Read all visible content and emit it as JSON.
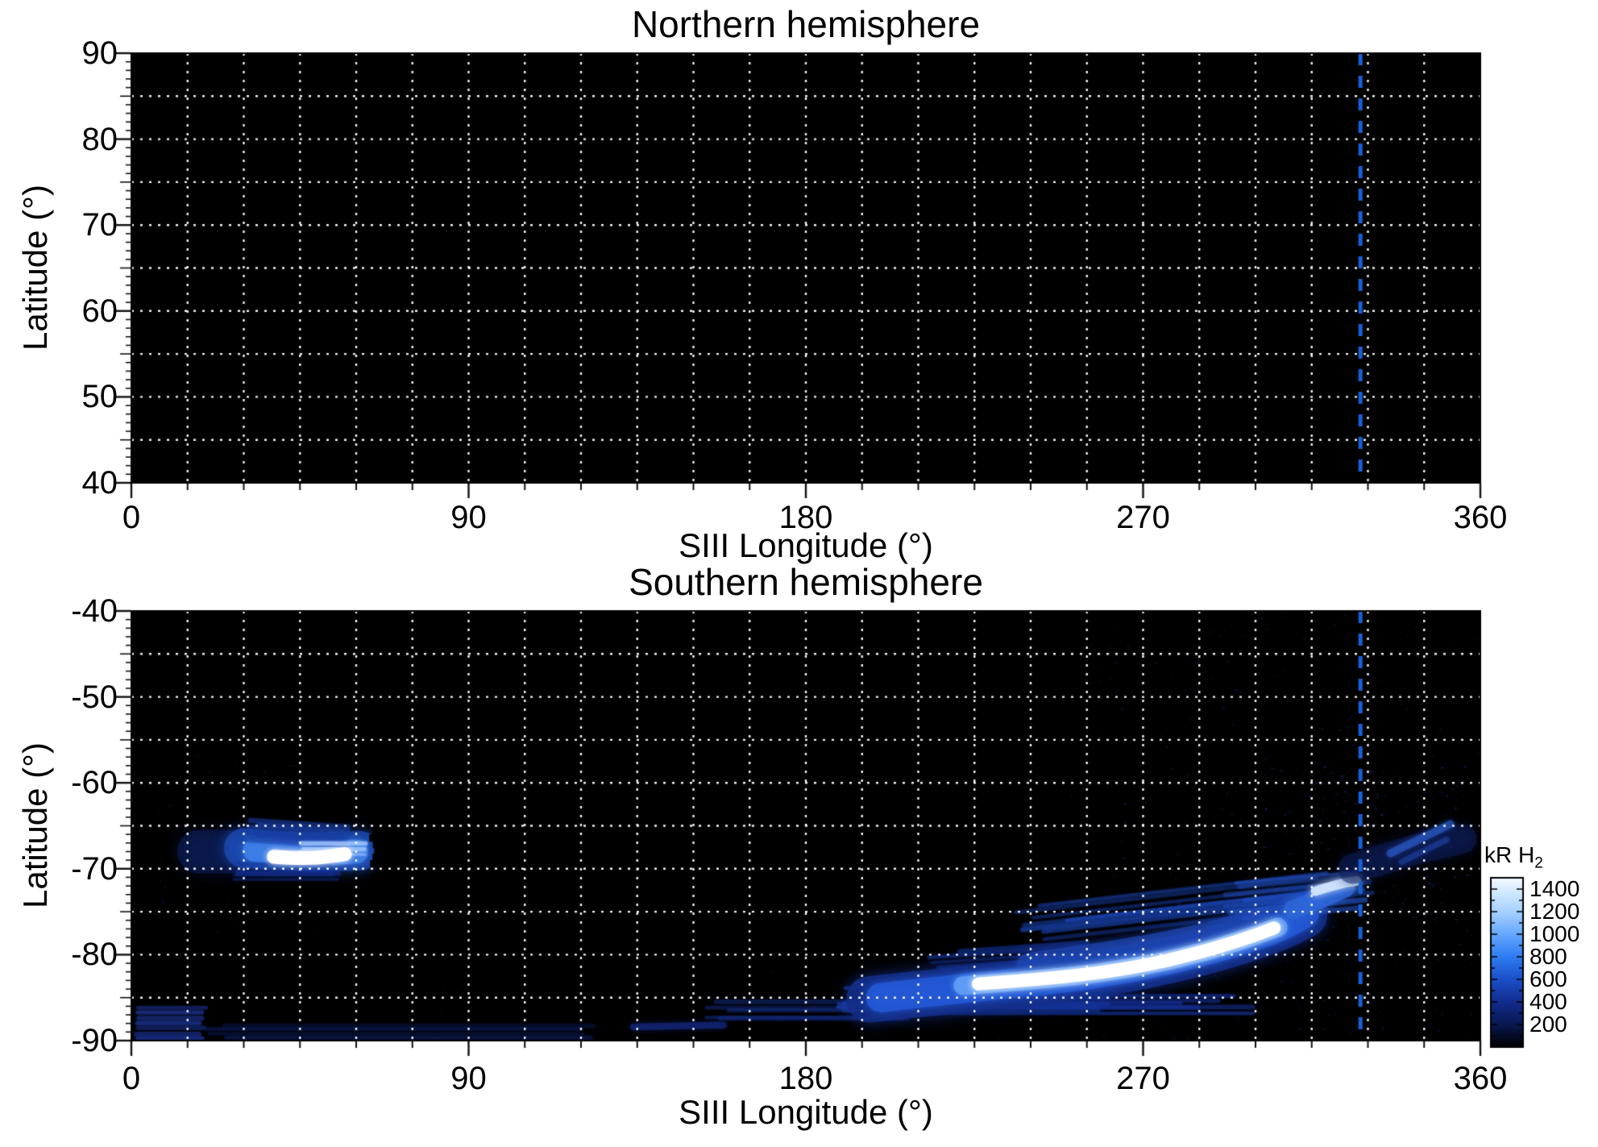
{
  "chart_data": {
    "type": "heatmap",
    "description": "Polar projection maps of H2 auroral emission vs SIII longitude and latitude, northern and southern hemispheres",
    "panels": [
      {
        "id": "north",
        "title": "Northern hemisphere",
        "xlabel": "SIII Longitude (°)",
        "ylabel": "Latitude (°)",
        "xlim": [
          0,
          360
        ],
        "ylim": [
          90,
          40
        ],
        "x_ticks": [
          "0",
          "90",
          "180",
          "270",
          "360"
        ],
        "x_tick_values": [
          0,
          90,
          180,
          270,
          360
        ],
        "y_ticks": [
          "90",
          "80",
          "70",
          "60",
          "50",
          "40"
        ],
        "y_tick_values": [
          90,
          80,
          70,
          60,
          50,
          40
        ],
        "grid": {
          "lon_step": 15,
          "lat_step": 5
        },
        "background": "#000000",
        "features": []
      },
      {
        "id": "south",
        "title": "Southern hemisphere",
        "xlabel": "SIII Longitude (°)",
        "ylabel": "Latitude (°)",
        "xlim": [
          0,
          360
        ],
        "ylim": [
          -40,
          -90
        ],
        "x_ticks": [
          "0",
          "90",
          "180",
          "270",
          "360"
        ],
        "x_tick_values": [
          0,
          90,
          180,
          270,
          360
        ],
        "y_ticks": [
          "-40",
          "-50",
          "-60",
          "-70",
          "-80",
          "-90"
        ],
        "y_tick_values": [
          -40,
          -50,
          -60,
          -70,
          -80,
          -90
        ],
        "grid": {
          "lon_step": 15,
          "lat_step": 5
        },
        "background": "#000000",
        "features": [
          {
            "kind": "speckle",
            "lon": [
              250,
              360
            ],
            "lat": [
              -90,
              -40
            ],
            "n": 800,
            "color": "#2444B8",
            "alpha": 0.2,
            "size": 3
          },
          {
            "kind": "speckle",
            "lon": [
              300,
              360
            ],
            "lat": [
              -76,
              -58
            ],
            "n": 300,
            "color": "#2A52C4",
            "alpha": 0.28,
            "size": 3
          },
          {
            "kind": "speckle",
            "lon": [
              0,
              55
            ],
            "lat": [
              -80,
              -56
            ],
            "n": 220,
            "color": "#1E3CA8",
            "alpha": 0.16,
            "size": 3
          },
          {
            "kind": "speckle",
            "lon": [
              60,
              250
            ],
            "lat": [
              -90,
              -80
            ],
            "n": 150,
            "color": "#1C38A0",
            "alpha": 0.15,
            "size": 3
          },
          {
            "kind": "stroke",
            "pts": [
              [
                18,
                -68.0
              ],
              [
                27,
                -68.0
              ]
            ],
            "w": 5.0,
            "color": "#0E2264",
            "alpha": 0.5,
            "blur": 18
          },
          {
            "kind": "stroke",
            "pts": [
              [
                30,
                -67.6
              ],
              [
                44,
                -68.1
              ],
              [
                61,
                -67.9
              ]
            ],
            "w": 4.6,
            "color": "#1C4AB0",
            "alpha": 0.8,
            "blur": 16
          },
          {
            "kind": "stroke",
            "pts": [
              [
                33,
                -67.8
              ],
              [
                47,
                -68.3
              ],
              [
                60,
                -68.0
              ]
            ],
            "w": 2.8,
            "color": "#3D7FE8",
            "alpha": 0.85,
            "blur": 10
          },
          {
            "kind": "streaks",
            "lon": [
              29,
              58
            ],
            "lat": [
              -64.3,
              -66.8
            ],
            "n": 8,
            "w": 0.45,
            "color": "#1B3FA4",
            "alpha": 0.5,
            "taper": [
              6,
              2
            ],
            "slope": -0.03
          },
          {
            "kind": "streaks",
            "lon": [
              27,
              56
            ],
            "lat": [
              -69.6,
              -71.4
            ],
            "n": 5,
            "w": 0.4,
            "color": "#16329A",
            "alpha": 0.4,
            "taper": [
              4,
              3
            ],
            "slope": 0
          },
          {
            "kind": "streaks",
            "lon": [
              45,
              63
            ],
            "lat": [
              -67.1,
              -68.1
            ],
            "n": 3,
            "w": 0.4,
            "color": "#9CC4FF",
            "alpha": 0.8,
            "taper": [
              2,
              1
            ],
            "slope": 0
          },
          {
            "kind": "stroke",
            "pts": [
              [
                38,
                -68.6
              ],
              [
                47,
                -68.9
              ],
              [
                57,
                -68.3
              ]
            ],
            "w": 1.6,
            "color": "#FFFFFF",
            "alpha": 1,
            "blur": 7
          },
          {
            "kind": "cutoff",
            "lon": 63.5,
            "lat": [
              -61,
              -73.5
            ]
          },
          {
            "kind": "streaks",
            "lon": [
              1,
              20
            ],
            "lat": [
              -86.4,
              -89.6
            ],
            "n": 7,
            "w": 0.5,
            "color": "#1A2F86",
            "alpha": 0.7,
            "taper": [
              1,
              3
            ],
            "slope": 0
          },
          {
            "kind": "streaks",
            "lon": [
              18,
              128
            ],
            "lat": [
              -88.2,
              -89.7
            ],
            "n": 4,
            "w": 0.45,
            "color": "#101F60",
            "alpha": 0.4,
            "taper": [
              8,
              8
            ],
            "slope": 0
          },
          {
            "kind": "stroke",
            "pts": [
              [
                134,
                -88.4
              ],
              [
                158,
                -88.2
              ]
            ],
            "w": 0.8,
            "color": "#18309A",
            "alpha": 0.5,
            "blur": 6
          },
          {
            "kind": "streaks",
            "lon": [
              152,
              208
            ],
            "lat": [
              -85.6,
              -87.6
            ],
            "n": 5,
            "w": 0.45,
            "color": "#142B7E",
            "alpha": 0.5,
            "taper": [
              10,
              4
            ],
            "slope": 0
          },
          {
            "kind": "streaks",
            "lon": [
              188,
              262
            ],
            "lat": [
              -83.4,
              -86.6
            ],
            "n": 10,
            "w": 0.5,
            "color": "#1C44B4",
            "alpha": 0.6,
            "taper": [
              14,
              6
            ],
            "slope": 0
          },
          {
            "kind": "streaks",
            "lon": [
              205,
              300
            ],
            "lat": [
              -84.8,
              -86.6
            ],
            "n": 6,
            "w": 0.45,
            "color": "#16329A",
            "alpha": 0.5,
            "taper": [
              6,
              20
            ],
            "slope": 0
          },
          {
            "kind": "streaks",
            "lon": [
              212,
              258
            ],
            "lat": [
              -79.5,
              -83.0
            ],
            "n": 6,
            "w": 0.45,
            "color": "#16379E",
            "alpha": 0.45,
            "taper": [
              10,
              4
            ],
            "slope": 0.03
          },
          {
            "kind": "stroke",
            "pts": [
              [
                197,
                -85.2
              ],
              [
                218,
                -84.2
              ],
              [
                242,
                -83.2
              ],
              [
                262,
                -82.0
              ],
              [
                280,
                -80.4
              ],
              [
                295,
                -78.6
              ],
              [
                306,
                -76.9
              ],
              [
                313,
                -75.4
              ]
            ],
            "w": 5.4,
            "color": "#142E86",
            "alpha": 0.85,
            "blur": 18
          },
          {
            "kind": "stroke",
            "pts": [
              [
                200,
                -85.0
              ],
              [
                220,
                -84.0
              ],
              [
                244,
                -83.0
              ],
              [
                264,
                -81.8
              ],
              [
                281,
                -80.2
              ],
              [
                296,
                -78.4
              ],
              [
                307,
                -76.7
              ],
              [
                313,
                -75.2
              ]
            ],
            "w": 3.4,
            "color": "#2458D4",
            "alpha": 0.9,
            "blur": 12
          },
          {
            "kind": "stroke",
            "pts": [
              [
                240,
                -81.5
              ],
              [
                265,
                -80.0
              ],
              [
                288,
                -78.0
              ],
              [
                302,
                -76.2
              ]
            ],
            "w": 3.5,
            "color": "#1E46B0",
            "alpha": 0.7,
            "blur": 14
          },
          {
            "kind": "streaks",
            "lon": [
              235,
              320
            ],
            "lat": [
              -78.0,
              -74.5
            ],
            "n": 8,
            "w": 0.45,
            "color": "#1E4CC4",
            "alpha": 0.45,
            "taper": [
              15,
              5
            ],
            "slope": 0.05
          },
          {
            "kind": "streaks",
            "lon": [
              290,
              332
            ],
            "lat": [
              -76.0,
              -71.5
            ],
            "n": 7,
            "w": 0.5,
            "color": "#2450BE",
            "alpha": 0.5,
            "taper": [
              8,
              6
            ],
            "slope": 0.04
          },
          {
            "kind": "stroke",
            "pts": [
              [
                222,
                -83.6
              ],
              [
                244,
                -82.9
              ],
              [
                264,
                -81.8
              ],
              [
                282,
                -80.2
              ],
              [
                296,
                -78.4
              ],
              [
                306,
                -76.8
              ]
            ],
            "w": 2.2,
            "color": "#5E9CF4",
            "alpha": 0.95,
            "blur": 10
          },
          {
            "kind": "stroke",
            "pts": [
              [
                226,
                -83.4
              ],
              [
                248,
                -82.7
              ],
              [
                268,
                -81.5
              ],
              [
                284,
                -79.9
              ],
              [
                297,
                -78.2
              ],
              [
                305,
                -76.9
              ]
            ],
            "w": 1.5,
            "color": "#FFFFFF",
            "alpha": 1,
            "blur": 8
          },
          {
            "kind": "stroke",
            "pts": [
              [
                310,
                -74.8
              ],
              [
                318,
                -73.4
              ],
              [
                324,
                -72.2
              ]
            ],
            "w": 2.2,
            "color": "#2E66D8",
            "alpha": 0.8,
            "blur": 10
          },
          {
            "kind": "stroke",
            "pts": [
              [
                316,
                -72.6
              ],
              [
                322,
                -71.8
              ],
              [
                327,
                -71.4
              ]
            ],
            "w": 1.1,
            "color": "#D0E4FF",
            "alpha": 0.95,
            "blur": 8
          },
          {
            "kind": "stroke",
            "pts": [
              [
                326,
                -70.0
              ],
              [
                340,
                -68.0
              ],
              [
                355,
                -66.5
              ]
            ],
            "w": 3.5,
            "color": "#0E1E5C",
            "alpha": 0.5,
            "blur": 14
          },
          {
            "kind": "stroke",
            "pts": [
              [
                336,
                -68.2
              ],
              [
                352,
                -64.8
              ]
            ],
            "w": 0.9,
            "color": "#2A5CC8",
            "alpha": 0.6,
            "blur": 6
          },
          {
            "kind": "stroke",
            "pts": [
              [
                339,
                -69.2
              ],
              [
                351,
                -66.6
              ]
            ],
            "w": 0.7,
            "color": "#1E44A8",
            "alpha": 0.45,
            "blur": 5
          }
        ]
      }
    ],
    "reference_line": {
      "longitude": 328,
      "color": "#1661D9",
      "style": "dashed"
    },
    "grid_color": "#FFFFFF",
    "colorbar": {
      "label": "kR H",
      "label_sub": "2",
      "ticks": [
        "1400",
        "1200",
        "1000",
        "800",
        "600",
        "400",
        "200"
      ],
      "tick_values": [
        1400,
        1200,
        1000,
        800,
        600,
        400,
        200
      ],
      "range": [
        0,
        1500
      ],
      "stops": [
        [
          "#F4FAFF",
          0.0
        ],
        [
          "#CCE6FF",
          0.1
        ],
        [
          "#A6D2FF",
          0.2
        ],
        [
          "#66A8FF",
          0.333
        ],
        [
          "#2E7CF2",
          0.467
        ],
        [
          "#1A50C8",
          0.6
        ],
        [
          "#122C8E",
          0.733
        ],
        [
          "#081850",
          0.867
        ],
        [
          "#000000",
          1.0
        ]
      ]
    }
  }
}
